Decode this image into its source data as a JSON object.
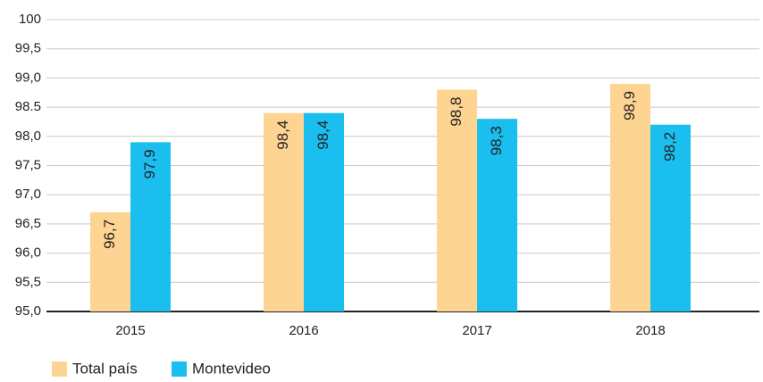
{
  "chart_data": {
    "type": "bar",
    "categories": [
      "2015",
      "2016",
      "2017",
      "2018"
    ],
    "series": [
      {
        "name": "Total país",
        "color": "#fdd491",
        "values": [
          96.7,
          98.4,
          98.8,
          98.9
        ],
        "value_labels": [
          "96,7",
          "98,4",
          "98,8",
          "98,9"
        ]
      },
      {
        "name": "Montevideo",
        "color": "#1bbfef",
        "values": [
          97.9,
          98.4,
          98.3,
          98.2
        ],
        "value_labels": [
          "97,9",
          "98,4",
          "98,3",
          "98,2"
        ]
      }
    ],
    "ylim": [
      95,
      100
    ],
    "yticks": [
      {
        "value": 95,
        "label": "95,0"
      },
      {
        "value": 95.5,
        "label": "95,5"
      },
      {
        "value": 96,
        "label": "96,0"
      },
      {
        "value": 96.5,
        "label": "96,5"
      },
      {
        "value": 97,
        "label": "97,0"
      },
      {
        "value": 97.5,
        "label": "97,5"
      },
      {
        "value": 98,
        "label": "98,0"
      },
      98.5,
      {
        "value": 99,
        "label": "99,0"
      },
      {
        "value": 99.5,
        "label": "99,5"
      },
      100
    ],
    "grid": true,
    "legend": "bottom-left"
  }
}
